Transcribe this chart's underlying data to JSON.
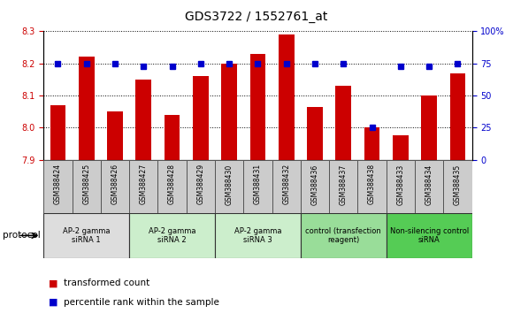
{
  "title": "GDS3722 / 1552761_at",
  "samples": [
    "GSM388424",
    "GSM388425",
    "GSM388426",
    "GSM388427",
    "GSM388428",
    "GSM388429",
    "GSM388430",
    "GSM388431",
    "GSM388432",
    "GSM388436",
    "GSM388437",
    "GSM388438",
    "GSM388433",
    "GSM388434",
    "GSM388435"
  ],
  "transformed_count": [
    8.07,
    8.22,
    8.05,
    8.15,
    8.04,
    8.16,
    8.2,
    8.23,
    8.29,
    8.065,
    8.13,
    8.0,
    7.975,
    8.1,
    8.17
  ],
  "percentile_rank": [
    75,
    75,
    75,
    73,
    73,
    75,
    75,
    75,
    75,
    75,
    75,
    25,
    73,
    73,
    75
  ],
  "ylim_left": [
    7.9,
    8.3
  ],
  "ylim_right": [
    0,
    100
  ],
  "yticks_left": [
    7.9,
    8.0,
    8.1,
    8.2,
    8.3
  ],
  "yticks_right": [
    0,
    25,
    50,
    75,
    100
  ],
  "bar_color": "#cc0000",
  "dot_color": "#0000cc",
  "groups": [
    {
      "label": "AP-2 gamma\nsiRNA 1",
      "indices": [
        0,
        1,
        2
      ],
      "color": "#dddddd"
    },
    {
      "label": "AP-2 gamma\nsiRNA 2",
      "indices": [
        3,
        4,
        5
      ],
      "color": "#cceecc"
    },
    {
      "label": "AP-2 gamma\nsiRNA 3",
      "indices": [
        6,
        7,
        8
      ],
      "color": "#cceecc"
    },
    {
      "label": "control (transfection\nreagent)",
      "indices": [
        9,
        10,
        11
      ],
      "color": "#99dd99"
    },
    {
      "label": "Non-silencing control\nsiRNA",
      "indices": [
        12,
        13,
        14
      ],
      "color": "#55cc55"
    }
  ],
  "sample_cell_color": "#cccccc",
  "protocol_label": "protocol",
  "legend_bar_label": "transformed count",
  "legend_dot_label": "percentile rank within the sample"
}
